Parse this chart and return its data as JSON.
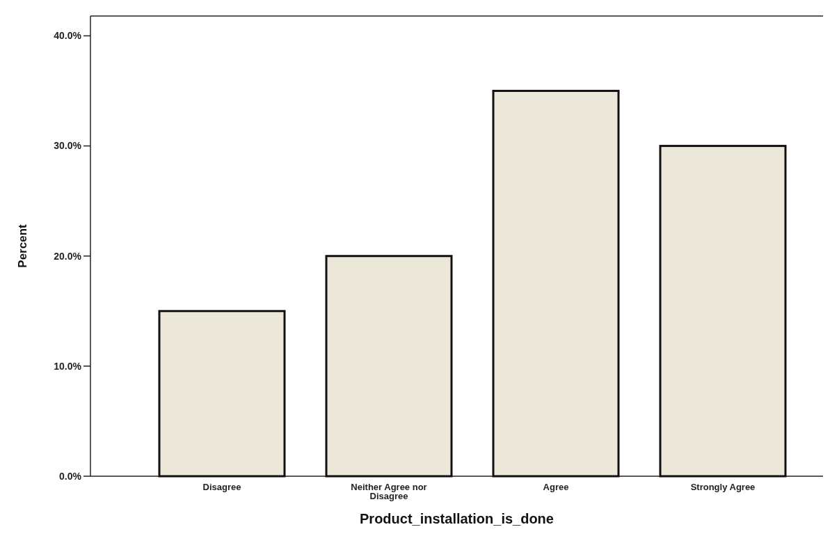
{
  "chart_data": {
    "type": "bar",
    "xlabel": "Product_installation_is_done",
    "ylabel": "Percent",
    "categories": [
      "Disagree",
      "Neither Agree nor Disagree",
      "Agree",
      "Strongly Agree"
    ],
    "values": [
      15,
      20,
      35,
      30
    ],
    "color": "#ebe7d9",
    "ylim": [
      0,
      41.8
    ],
    "yticks": [
      {
        "value": 0,
        "label": "0.0%"
      },
      {
        "value": 10,
        "label": "10.0%"
      },
      {
        "value": 20,
        "label": "20.0%"
      },
      {
        "value": 30,
        "label": "30.0%"
      },
      {
        "value": 40,
        "label": "40.0%"
      }
    ],
    "grid": false
  }
}
